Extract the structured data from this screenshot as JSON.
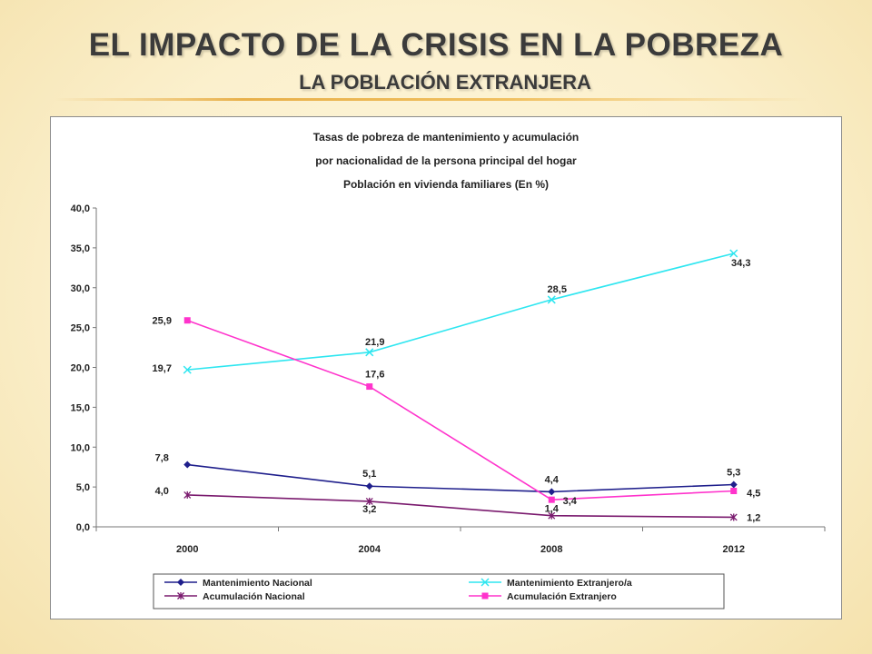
{
  "slide": {
    "title": "EL IMPACTO DE LA CRISIS EN LA POBREZA",
    "subtitle": "LA POBLACIÓN EXTRANJERA"
  },
  "chart_data": {
    "type": "line",
    "title_lines": [
      "Tasas de pobreza de mantenimiento y acumulación",
      "por nacionalidad de la persona principal del hogar",
      "Población en vivienda familiares (En %)"
    ],
    "categories": [
      "2000",
      "2004",
      "2008",
      "2012"
    ],
    "ylim": [
      0,
      40
    ],
    "yticks": [
      "0,0",
      "5,0",
      "10,0",
      "15,0",
      "20,0",
      "25,0",
      "30,0",
      "35,0",
      "40,0"
    ],
    "grid": false,
    "legend_position": "bottom",
    "series": [
      {
        "name": "Mantenimiento Nacional",
        "values": [
          7.8,
          5.1,
          4.4,
          5.3
        ],
        "labels": [
          "7,8",
          "5,1",
          "4,4",
          "5,3"
        ],
        "color": "#1f1f8c",
        "marker": "diamond"
      },
      {
        "name": "Mantenimiento Extranjero/a",
        "values": [
          19.7,
          21.9,
          28.5,
          34.3
        ],
        "labels": [
          "19,7",
          "21,9",
          "28,5",
          "34,3"
        ],
        "color": "#2ee6f0",
        "marker": "x"
      },
      {
        "name": "Acumulación Nacional",
        "values": [
          4.0,
          3.2,
          1.4,
          1.2
        ],
        "labels": [
          "4,0",
          "3,2",
          "1,4",
          "1,2"
        ],
        "color": "#7a1a6e",
        "marker": "star"
      },
      {
        "name": "Acumulación Extranjero",
        "values": [
          25.9,
          17.6,
          3.4,
          4.5
        ],
        "labels": [
          "25,9",
          "17,6",
          "3,4",
          "4,5"
        ],
        "color": "#ff33cc",
        "marker": "square"
      }
    ]
  }
}
